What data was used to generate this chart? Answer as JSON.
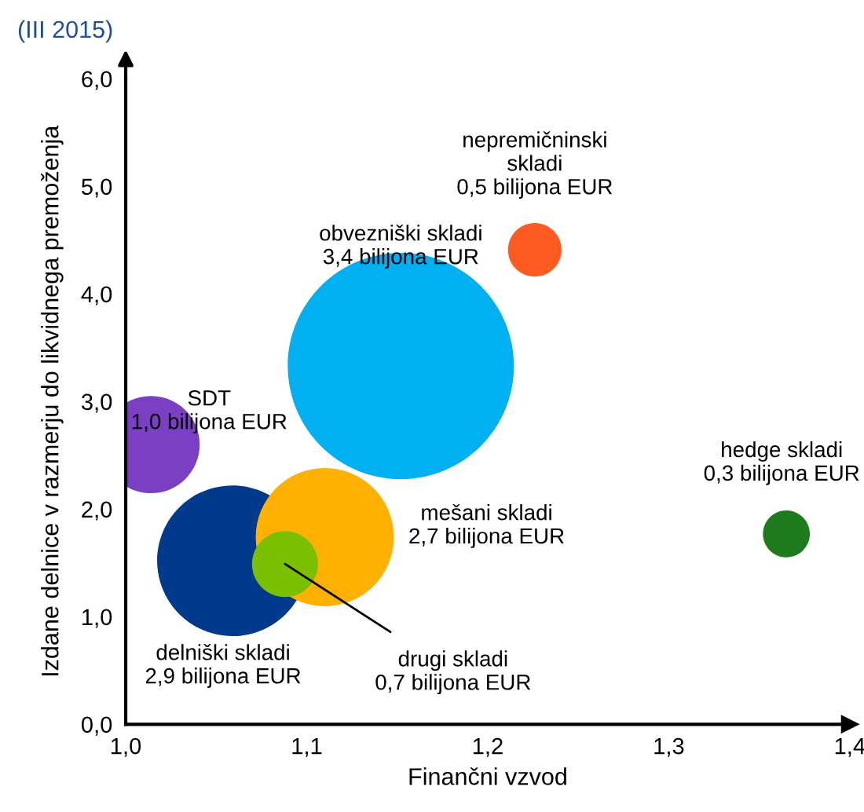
{
  "chart_data": {
    "type": "bubble",
    "title": "(III 2015)",
    "xlabel": "Finančni vzvod",
    "ylabel": "Izdane delnice v razmerju do likvidnega premoženja",
    "x": [
      1.014,
      1.152,
      1.226,
      1.365,
      1.059,
      1.11,
      1.088
    ],
    "values": [
      2.6,
      3.33,
      4.41,
      1.77,
      1.52,
      1.74,
      1.49
    ],
    "sizes": [
      0.185,
      1,
      0.056,
      0.043,
      0.444,
      0.373,
      0.085
    ],
    "colors": [
      "#7b3fc4",
      "#00b0f0",
      "#ff5a1f",
      "#1e7b1e",
      "#003a8c",
      "#ffb000",
      "#7ac000"
    ],
    "annotations": [
      "SDT\n1,0 bilijona EUR",
      "obvezniški skladi\n3,4 bilijona EUR",
      "nepremičninski\nskladi\n0,5 bilijona EUR",
      "hedge skladi\n0,3 bilijona EUR",
      "delniški skladi\n2,9 bilijona EUR",
      "mešani skladi\n2,7 bilijona EUR",
      {
        "text": "drugi skladi\n0,7 bilijona EUR",
        "x": 1.088,
        "y": 1.49
      }
    ],
    "xlim": [
      1.0,
      1.4
    ],
    "xticks": [
      {
        "value": 1.0,
        "label": "1,0"
      },
      {
        "value": 1.1,
        "label": "1,1"
      },
      {
        "value": 1.2,
        "label": "1,2"
      },
      {
        "value": 1.3,
        "label": "1,3"
      },
      {
        "value": 1.4,
        "label": "1,4"
      }
    ],
    "ylim": [
      0,
      6
    ],
    "yticks": [
      {
        "value": 0,
        "label": "0,0"
      },
      {
        "value": 1,
        "label": "1,0"
      },
      {
        "value": 2,
        "label": "2,0"
      },
      {
        "value": 3,
        "label": "3,0"
      },
      {
        "value": 4,
        "label": "4,0"
      },
      {
        "value": 5,
        "label": "5,0"
      },
      {
        "value": 6,
        "label": "6,0"
      }
    ]
  }
}
